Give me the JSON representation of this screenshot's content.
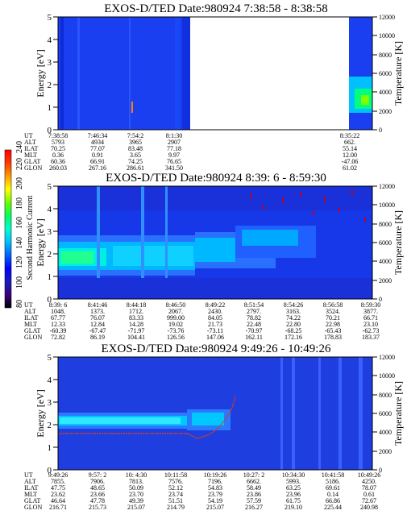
{
  "chart_data": [
    {
      "type": "heatmap",
      "title": "EXOS-D/TED   Date:980924  7:38:58 - 8:38:58",
      "ylabel": "Energy [eV]",
      "y2label": "Temperature [K]",
      "ylim": [
        0,
        5
      ],
      "y2lim": [
        0,
        12000
      ],
      "yticks": [
        "0",
        "1",
        "2",
        "3",
        "4",
        "5"
      ],
      "y2ticks": [
        "0",
        "2000",
        "4000",
        "6000",
        "8000",
        "10000",
        "12000"
      ],
      "orbit_rows": [
        {
          "label": "UT",
          "values": [
            "7:38:58",
            "7:46:34",
            "7:54:2",
            "8:1:30",
            "8:35:22"
          ]
        },
        {
          "label": "ALT",
          "values": [
            "5793",
            "4934",
            "3965",
            "2907",
            "662."
          ]
        },
        {
          "label": "ILAT",
          "values": [
            "70.25",
            "77.07",
            "83.48",
            "77.18",
            "55.14"
          ]
        },
        {
          "label": "MLT",
          "values": [
            "0.36",
            "0.91",
            "3.65",
            "9.97",
            "12.00"
          ]
        },
        {
          "label": "GLAT",
          "values": [
            "60.36",
            "66.91",
            "74.25",
            "76.65",
            "-47.06"
          ]
        },
        {
          "label": "GLON",
          "values": [
            "260.03",
            "267.16",
            "286.61",
            "341.50",
            "61.02"
          ]
        }
      ]
    },
    {
      "type": "heatmap",
      "title": "EXOS-D/TED   Date:980924   8:39: 6 - 8:59:30",
      "ylabel": "Energy [eV]",
      "y2label": "Temperature [K]",
      "ylim": [
        0,
        5
      ],
      "y2lim": [
        0,
        12000
      ],
      "yticks": [
        "0",
        "1",
        "2",
        "3",
        "4",
        "5"
      ],
      "y2ticks": [
        "0",
        "2000",
        "4000",
        "6000",
        "8000",
        "10000",
        "12000"
      ],
      "orbit_rows": [
        {
          "label": "UT",
          "values": [
            "8:39: 6",
            "8:41:46",
            "8:44:18",
            "8:46:50",
            "8:49:22",
            "8:51:54",
            "8:54:26",
            "8:56:58",
            "8:59:30"
          ]
        },
        {
          "label": "ALT",
          "values": [
            "1048.",
            "1373.",
            "1712.",
            "2067.",
            "2430.",
            "2797.",
            "3163.",
            "3524.",
            "3877."
          ]
        },
        {
          "label": "ILAT",
          "values": [
            "67.77",
            "76.07",
            "83.33",
            "999.00",
            "84.05",
            "78.82",
            "74.22",
            "70.21",
            "66.71"
          ]
        },
        {
          "label": "MLT",
          "values": [
            "12.33",
            "12.84",
            "14.28",
            "19.02",
            "21.73",
            "22.48",
            "22.80",
            "22.98",
            "23.10"
          ]
        },
        {
          "label": "GLAT",
          "values": [
            "-60.39",
            "-67.47",
            "-71.97",
            "-73.76",
            "-73.11",
            "-70.97",
            "-68.25",
            "-65.43",
            "-62.73"
          ]
        },
        {
          "label": "GLON",
          "values": [
            "72.82",
            "86.19",
            "104.41",
            "126.56",
            "147.06",
            "162.11",
            "172.16",
            "178.83",
            "183.37"
          ]
        }
      ]
    },
    {
      "type": "heatmap",
      "title": "EXOS-D/TED   Date:980924   9:49:26 - 10:49:26",
      "ylabel": "Energy [eV]",
      "y2label": "Temperature [K]",
      "ylim": [
        0,
        5
      ],
      "y2lim": [
        0,
        12000
      ],
      "yticks": [
        "0",
        "1",
        "2",
        "3",
        "4",
        "5"
      ],
      "y2ticks": [
        "0",
        "2000",
        "4000",
        "6000",
        "8000",
        "10000",
        "12000"
      ],
      "orbit_rows": [
        {
          "label": "UT",
          "values": [
            "9:49:26",
            "9:57: 2",
            "10: 4:30",
            "10:11:58",
            "10:19:26",
            "10:27: 2",
            "10:34:30",
            "10:41:58",
            "10:49:26"
          ]
        },
        {
          "label": "ALT",
          "values": [
            "7855.",
            "7906.",
            "7813.",
            "7576.",
            "7196.",
            "6662.",
            "5993.",
            "5186.",
            "4250."
          ]
        },
        {
          "label": "ILAT",
          "values": [
            "47.75",
            "48.65",
            "50.09",
            "52.12",
            "54.83",
            "58.49",
            "63.25",
            "69.61",
            "78.07"
          ]
        },
        {
          "label": "MLT",
          "values": [
            "23.62",
            "23.66",
            "23.70",
            "23.74",
            "23.79",
            "23.86",
            "23.96",
            "0.14",
            "0.61"
          ]
        },
        {
          "label": "GLAT",
          "values": [
            "46.64",
            "47.78",
            "49.39",
            "51.51",
            "54.19",
            "57.59",
            "61.75",
            "66.86",
            "72.67"
          ]
        },
        {
          "label": "GLON",
          "values": [
            "216.71",
            "215.73",
            "215.07",
            "214.79",
            "215.07",
            "216.27",
            "219.10",
            "225.44",
            "240.98"
          ]
        }
      ]
    }
  ],
  "colorbar": {
    "label": "Second Harmonic Current",
    "range": [
      80,
      240
    ],
    "ticks": [
      "80",
      "100",
      "120",
      "140",
      "160",
      "180",
      "200",
      "220",
      "240"
    ],
    "colors": [
      "#000000",
      "#3a0080",
      "#1a1ab8",
      "#0000ff",
      "#0060ff",
      "#00c0ff",
      "#00ffd0",
      "#00ff60",
      "#60ff00",
      "#ffff00",
      "#ffa000",
      "#ff4000",
      "#ff0000"
    ]
  }
}
